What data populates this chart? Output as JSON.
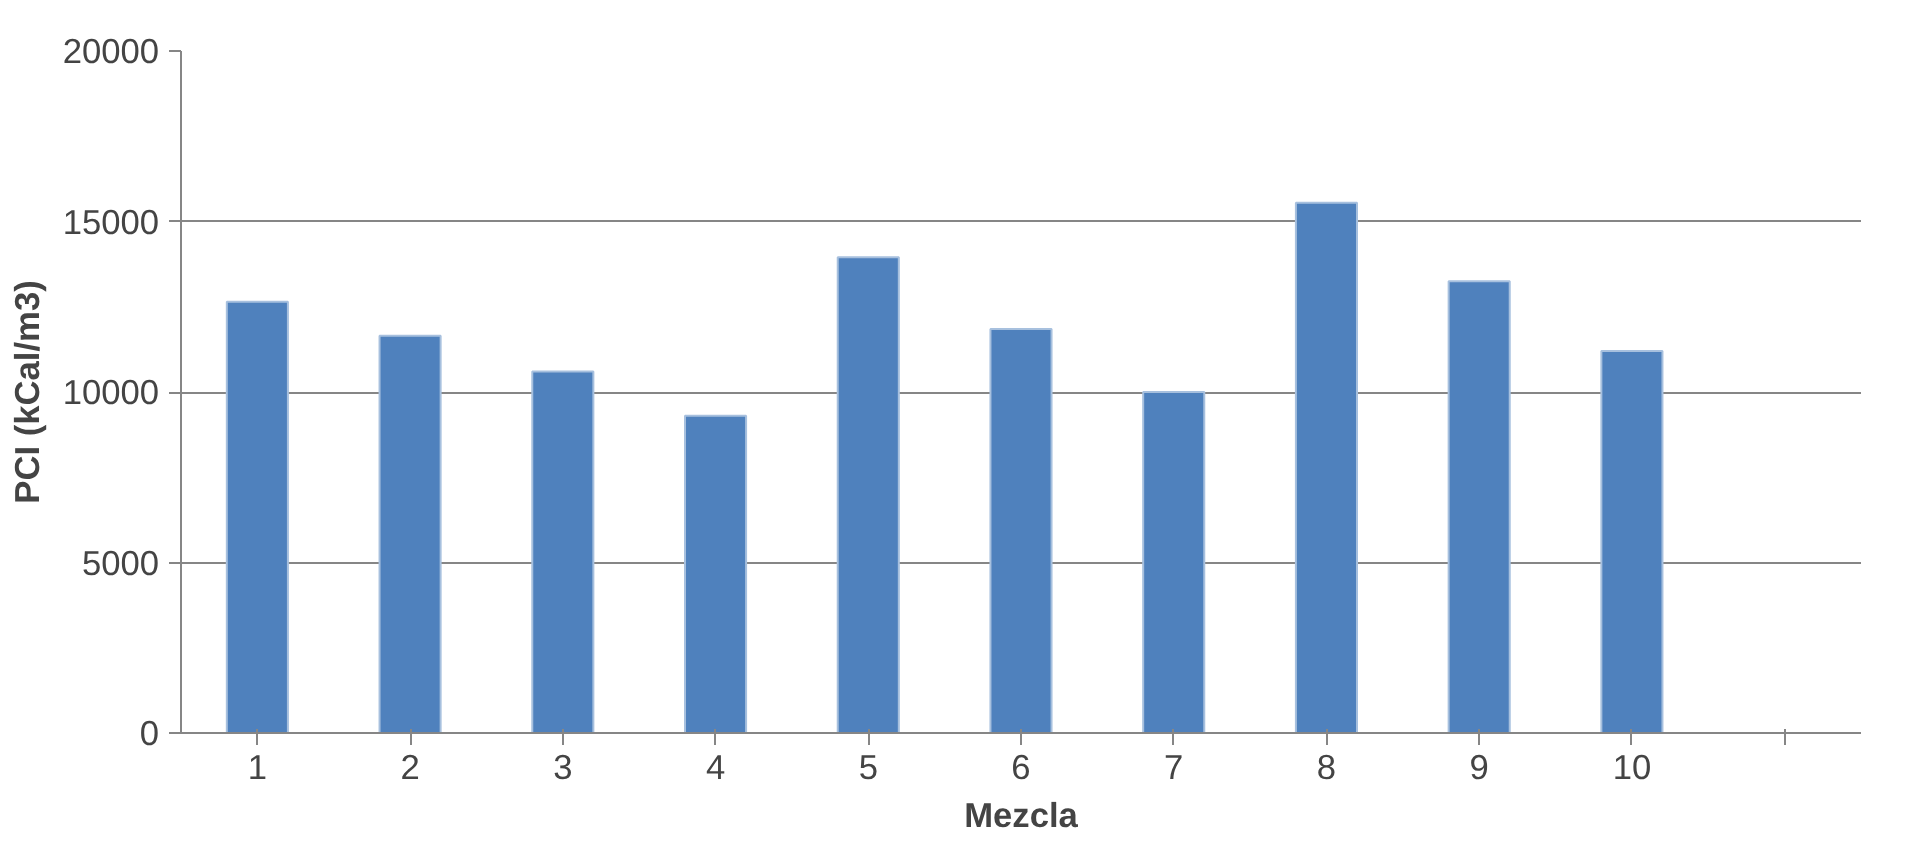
{
  "chart_data": {
    "type": "bar",
    "xlabel": "Mezcla",
    "ylabel": "PCI (kCal/m3)",
    "categories": [
      "1",
      "2",
      "3",
      "4",
      "5",
      "6",
      "7",
      "8",
      "9",
      "10",
      null
    ],
    "values": [
      12650,
      11650,
      10600,
      9300,
      13950,
      11850,
      10000,
      15550,
      13250,
      11200,
      null
    ],
    "color": "#4f81bd",
    "ylim": [
      0,
      20000
    ],
    "yticks": [
      0,
      5000,
      10000,
      15000,
      20000
    ],
    "grid": "y"
  }
}
